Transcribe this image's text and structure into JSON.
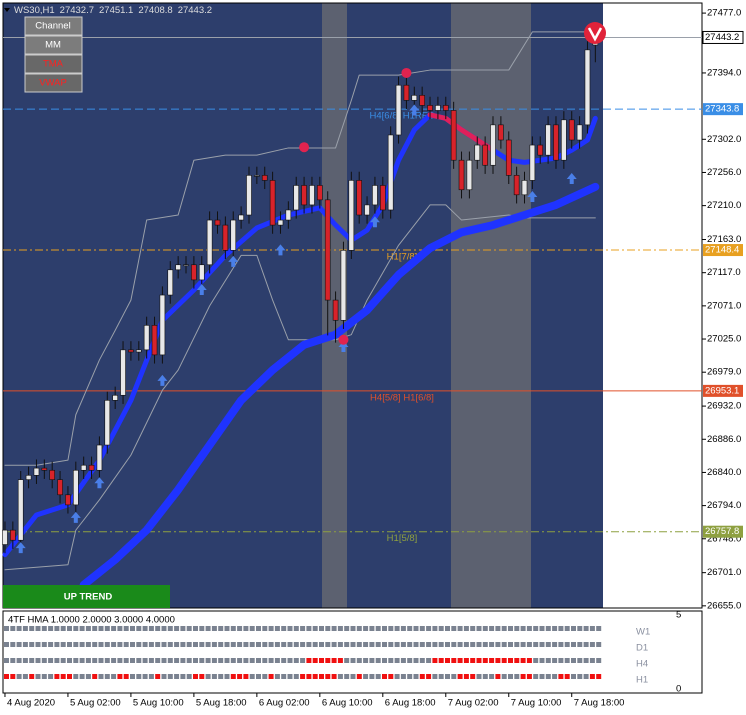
{
  "header": {
    "symbol": "WS30,H1"
  },
  "buttons": [
    {
      "label": "Channel",
      "text_color": "#ffffff"
    },
    {
      "label": "MM",
      "text_color": "#ffffff"
    },
    {
      "label": "TMA",
      "text_color": "#ff2020"
    },
    {
      "label": "VWAP",
      "text_color": "#ff2020"
    }
  ],
  "chart_data": {
    "type": "candlestick",
    "open": [
      26740,
      26760,
      26746,
      26830,
      26836,
      26846,
      26843,
      26830,
      26809,
      26795,
      26843,
      26850,
      26843,
      26878,
      26940,
      26947,
      27010,
      27007,
      27010,
      27044,
      27003,
      27086,
      27121,
      27128,
      27128,
      27107,
      27128,
      27190,
      27183,
      27148,
      27190,
      27197,
      27252,
      27252,
      27245,
      27183,
      27190,
      27204,
      27238,
      27211,
      27238,
      27218,
      27079,
      27051,
      27148,
      27245,
      27197,
      27211,
      27238,
      27204,
      27308,
      27377,
      27356,
      27363,
      27349,
      27342,
      27349,
      27342,
      27273,
      27232,
      27273,
      27294,
      27266,
      27322,
      27301,
      27252,
      27225,
      27245,
      27294,
      27280,
      27322,
      27273,
      27329,
      27301,
      27322,
      27432.7
    ],
    "high": [
      26772,
      26772,
      26842,
      26848,
      26858,
      26858,
      26855,
      26842,
      26821,
      26855,
      26862,
      26862,
      26890,
      26952,
      26959,
      27022,
      27022,
      27022,
      27056,
      27056,
      27098,
      27133,
      27140,
      27140,
      27140,
      27140,
      27202,
      27202,
      27195,
      27202,
      27209,
      27264,
      27264,
      27264,
      27257,
      27202,
      27216,
      27250,
      27250,
      27250,
      27250,
      27230,
      27091,
      27160,
      27257,
      27257,
      27223,
      27250,
      27250,
      27320,
      27389,
      27389,
      27375,
      27375,
      27361,
      27361,
      27361,
      27354,
      27285,
      27285,
      27306,
      27306,
      27334,
      27334,
      27313,
      27264,
      27257,
      27306,
      27306,
      27334,
      27334,
      27341,
      27341,
      27334,
      27438,
      27451.1
    ],
    "low": [
      26728,
      26734,
      26734,
      26818,
      26824,
      26831,
      26818,
      26797,
      26783,
      26783,
      26831,
      26831,
      26831,
      26866,
      26928,
      26935,
      26995,
      26995,
      26998,
      26991,
      26991,
      27074,
      27109,
      27116,
      27095,
      27095,
      27116,
      27171,
      27136,
      27136,
      27178,
      27185,
      27240,
      27233,
      27171,
      27171,
      27178,
      27192,
      27199,
      27199,
      27206,
      27030,
      27020,
      27039,
      27136,
      27185,
      27185,
      27199,
      27192,
      27192,
      27296,
      27344,
      27344,
      27337,
      27330,
      27330,
      27330,
      27261,
      27220,
      27220,
      27261,
      27254,
      27254,
      27289,
      27240,
      27213,
      27213,
      27233,
      27268,
      27268,
      27261,
      27261,
      27289,
      27289,
      27310,
      27408.8
    ],
    "close": [
      26760,
      26746,
      26830,
      26836,
      26846,
      26843,
      26830,
      26809,
      26795,
      26843,
      26850,
      26843,
      26878,
      26940,
      26947,
      27010,
      27007,
      27010,
      27044,
      27003,
      27086,
      27121,
      27128,
      27128,
      27107,
      27128,
      27190,
      27183,
      27148,
      27190,
      27197,
      27252,
      27252,
      27245,
      27183,
      27190,
      27204,
      27238,
      27211,
      27238,
      27218,
      27079,
      27051,
      27148,
      27245,
      27197,
      27211,
      27238,
      27204,
      27308,
      27377,
      27356,
      27363,
      27349,
      27342,
      27349,
      27342,
      27273,
      27232,
      27273,
      27294,
      27266,
      27322,
      27301,
      27252,
      27225,
      27245,
      27294,
      27280,
      27322,
      27273,
      27329,
      27301,
      27322,
      27426,
      27443.2
    ],
    "xlim": [
      -0.25,
      88.55
    ],
    "xticks": [
      {
        "value": 0,
        "label": "4 Aug 2020"
      },
      {
        "value": 8,
        "label": "5 Aug 02:00"
      },
      {
        "value": 16,
        "label": "5 Aug 10:00"
      },
      {
        "value": 24,
        "label": "5 Aug 18:00"
      },
      {
        "value": 32,
        "label": "6 Aug 02:00"
      },
      {
        "value": 40,
        "label": "6 Aug 10:00"
      },
      {
        "value": 48,
        "label": "6 Aug 18:00"
      },
      {
        "value": 56,
        "label": "7 Aug 02:00"
      },
      {
        "value": 64,
        "label": "7 Aug 10:00"
      },
      {
        "value": 72,
        "label": "7 Aug 18:00"
      }
    ],
    "ylim": [
      26652,
      27491
    ],
    "yticks": [
      {
        "value": 27477,
        "label": "27477.0"
      },
      {
        "value": 27394,
        "label": "27394.0"
      },
      {
        "value": 27302,
        "label": "27302.0"
      },
      {
        "value": 27256,
        "label": "27256.0"
      },
      {
        "value": 27210,
        "label": "27210.0"
      },
      {
        "value": 27163,
        "label": "27163.0"
      },
      {
        "value": 27117,
        "label": "27117.0"
      },
      {
        "value": 27071,
        "label": "27071.0"
      },
      {
        "value": 27025,
        "label": "27025.0"
      },
      {
        "value": 26979,
        "label": "26979.0"
      },
      {
        "value": 26932,
        "label": "26932.0"
      },
      {
        "value": 26886,
        "label": "26886.0"
      },
      {
        "value": 26840,
        "label": "26840.0"
      },
      {
        "value": 26794,
        "label": "26794.0"
      },
      {
        "value": 26748,
        "label": "26748.0"
      },
      {
        "value": 26701,
        "label": "26701.0"
      },
      {
        "value": 26655,
        "label": "26655.0"
      }
    ],
    "colors": {
      "up": "#e8e8e8",
      "down": "#d8232a",
      "background": "#2d3e6c"
    },
    "overlays": [
      {
        "color": "#9aa0aa",
        "x": [
          0,
          4,
          8,
          9,
          12,
          14,
          16,
          18,
          22,
          24,
          28,
          32,
          36,
          40,
          42,
          44,
          45,
          50,
          54,
          58,
          64,
          67,
          75
        ],
        "values": [
          26850,
          26850,
          26857,
          26920,
          26996,
          27037,
          27079,
          27190,
          27197,
          27273,
          27280,
          27280,
          27290,
          27290,
          27290,
          27356,
          27391,
          27391,
          27398,
          27398,
          27398,
          27451,
          27451
        ]
      },
      {
        "color": "#9aa0aa",
        "x": [
          0,
          8,
          9,
          12,
          16,
          20,
          22,
          26,
          30,
          32,
          34,
          36,
          42,
          44,
          46,
          50,
          54,
          56,
          58,
          64,
          66,
          75
        ],
        "values": [
          26705,
          26712,
          26760,
          26802,
          26864,
          26954,
          26982,
          27071,
          27141,
          27141,
          27079,
          27024,
          27024,
          27031,
          27079,
          27155,
          27211,
          27211,
          27190,
          27197,
          27193,
          27193
        ]
      },
      {
        "color": "#1f33ff",
        "x": [
          10,
          14,
          18,
          22,
          26,
          30,
          34,
          38,
          42,
          46,
          50,
          54,
          58,
          62,
          66,
          70,
          75
        ],
        "values": [
          26684,
          26719,
          26760,
          26816,
          26878,
          26940,
          26982,
          27017,
          27031,
          27065,
          27114,
          27151,
          27173,
          27183,
          27197,
          27211,
          27236
        ]
      },
      {
        "color": "#1f33ff",
        "x": [
          0,
          4,
          8,
          12,
          16,
          20,
          24,
          28,
          32,
          36,
          40,
          42,
          44,
          46,
          48,
          50,
          52,
          54,
          56,
          58,
          60,
          62,
          64,
          66,
          68,
          70,
          72,
          74,
          75
        ],
        "values": [
          26726,
          26781,
          26795,
          26857,
          26940,
          27051,
          27093,
          27141,
          27179,
          27197,
          27207,
          27183,
          27162,
          27176,
          27211,
          27273,
          27315,
          27336,
          27331,
          27315,
          27301,
          27287,
          27273,
          27270,
          27273,
          27276,
          27287,
          27301,
          27331
        ]
      },
      {
        "color": "#e0205a",
        "x": [
          54,
          56,
          58,
          60,
          62
        ],
        "values": [
          27336,
          27331,
          27315,
          27301,
          27287
        ]
      }
    ],
    "levels": [
      {
        "value": 27343.8,
        "text": "H4[6/8] H1RES",
        "color": "#3a8ee6",
        "style": "dash"
      },
      {
        "value": 27148.4,
        "text": "H1[7/8]",
        "color": "#e8a020",
        "style": "dashdot"
      },
      {
        "value": 26953.1,
        "text": "H4[5/8] H1[6/8]",
        "color": "#e0502a",
        "style": "solid"
      },
      {
        "value": 26757.8,
        "text": "H1[5/8]",
        "color": "#8ea040",
        "style": "dashdot"
      }
    ],
    "buy_arrows": {
      "color": "#4a7fe8",
      "x": [
        2,
        9,
        12,
        20,
        25,
        29,
        35,
        43,
        47,
        52,
        67,
        72
      ],
      "values": [
        26735,
        26777,
        26825,
        26967,
        27093,
        27132,
        27148,
        27014,
        27187,
        27342,
        27222,
        27247
      ]
    },
    "sell_dots": {
      "color": "#e0234f",
      "x": [
        38,
        51,
        43
      ],
      "values": [
        27291,
        27394,
        27024
      ]
    },
    "trend_label": "UP TREND"
  },
  "hma_panel": {
    "title": "4TF HMA 1.0000 2.0000 3.0000 4.0000",
    "yticks": [
      0,
      5
    ],
    "rows": [
      {
        "label": "W1",
        "red": []
      },
      {
        "label": "D1",
        "red": []
      },
      {
        "label": "H4",
        "red": [
          [
            48,
            53
          ],
          [
            68,
            83
          ]
        ]
      },
      {
        "label": "H1",
        "red": [
          [
            0,
            1
          ],
          [
            4,
            4
          ],
          [
            8,
            10
          ],
          [
            14,
            14
          ],
          [
            18,
            19
          ],
          [
            24,
            24
          ],
          [
            30,
            31
          ],
          [
            36,
            38
          ],
          [
            42,
            42
          ],
          [
            47,
            52
          ],
          [
            56,
            56
          ],
          [
            60,
            61
          ],
          [
            66,
            67
          ],
          [
            72,
            74
          ],
          [
            78,
            78
          ],
          [
            82,
            83
          ],
          [
            88,
            89
          ],
          [
            93,
            94
          ]
        ]
      }
    ]
  }
}
